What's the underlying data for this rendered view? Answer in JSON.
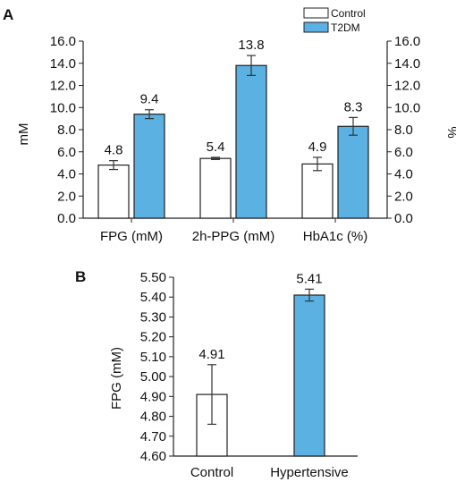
{
  "chart_data": [
    {
      "panel": "A",
      "type": "bar",
      "categories": [
        "FPG (mM)",
        "2h-PPG (mM)",
        "HbA1c (%)"
      ],
      "series": [
        {
          "name": "Control",
          "values": [
            4.8,
            5.4,
            4.9
          ],
          "errors": [
            0.4,
            0.1,
            0.6
          ],
          "labels": [
            "4.8",
            "5.4",
            "4.9"
          ],
          "color": "#ffffff"
        },
        {
          "name": "T2DM",
          "values": [
            9.4,
            13.8,
            8.3
          ],
          "errors": [
            0.4,
            0.9,
            0.8
          ],
          "labels": [
            "9.4",
            "13.8",
            "8.3"
          ],
          "color": "#5bb1e2"
        }
      ],
      "ylabel": "mM",
      "y2label": "%",
      "ylim": [
        0,
        16
      ],
      "yticks": [
        "0.0",
        "2.0",
        "4.0",
        "6.0",
        "8.0",
        "10.0",
        "12.0",
        "14.0",
        "16.0"
      ],
      "legend": "top-right",
      "grid": false
    },
    {
      "panel": "B",
      "type": "bar",
      "categories": [
        "Control",
        "Hypertensive"
      ],
      "values": [
        4.91,
        5.41
      ],
      "errors": [
        0.15,
        0.03
      ],
      "labels": [
        "4.91",
        "5.41"
      ],
      "colors": [
        "#ffffff",
        "#5bb1e2"
      ],
      "ylabel": "FPG (mM)",
      "ylim": [
        4.6,
        5.5
      ],
      "yticks": [
        "4.60",
        "4.70",
        "4.80",
        "4.90",
        "5.00",
        "5.10",
        "5.20",
        "5.30",
        "5.40",
        "5.50"
      ],
      "grid": false
    }
  ]
}
